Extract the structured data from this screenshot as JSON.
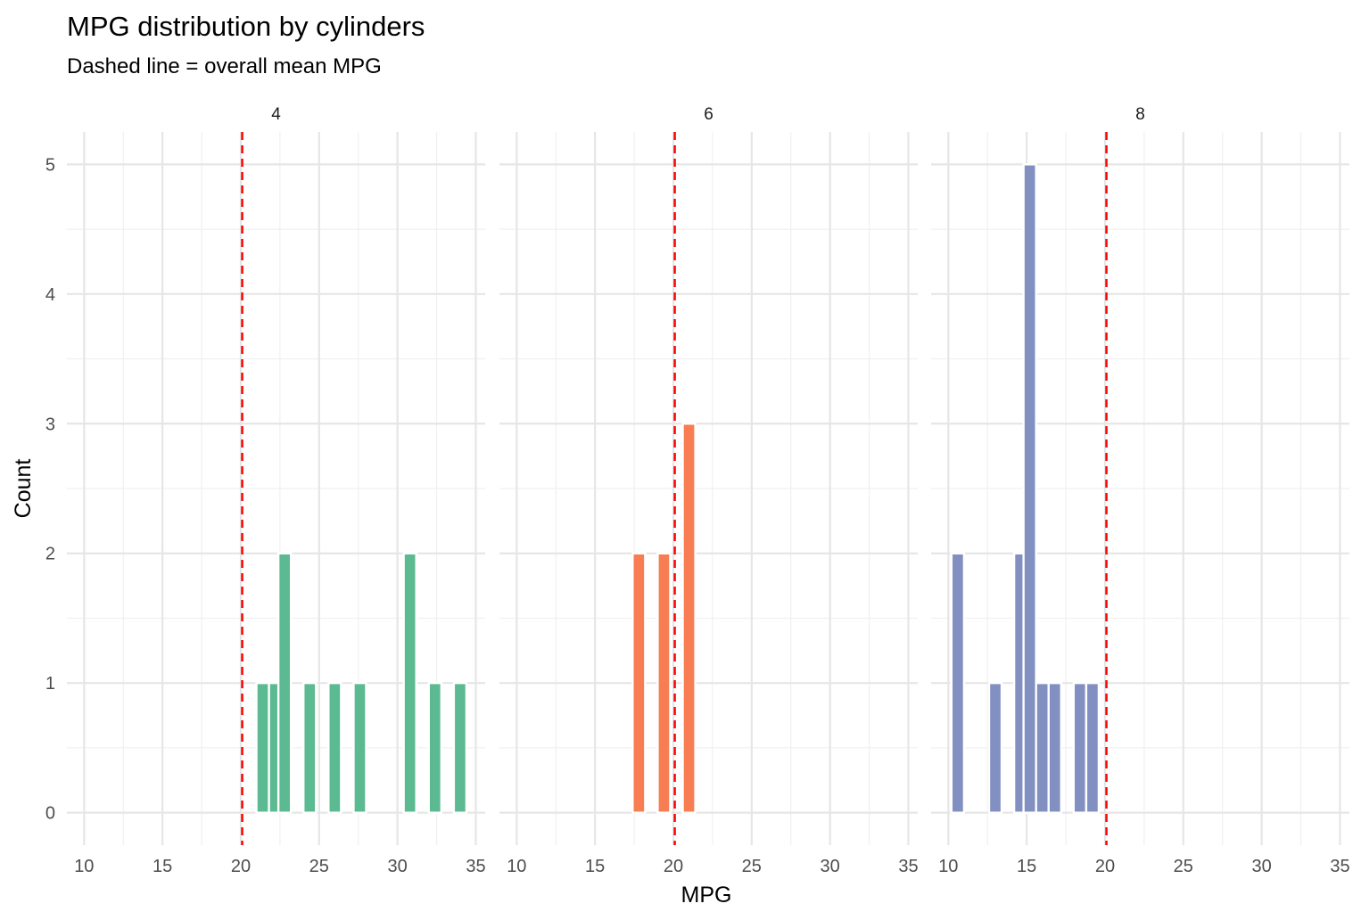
{
  "chart_data": {
    "type": "bar",
    "title": "MPG distribution by cylinders",
    "subtitle": "Dashed line = overall mean MPG",
    "xlabel": "MPG",
    "ylabel": "Count",
    "xlim": [
      8.9,
      35.6
    ],
    "ylim": [
      -0.25,
      5.25
    ],
    "x_ticks": [
      "10",
      "15",
      "20",
      "25",
      "30",
      "35"
    ],
    "y_ticks": [
      "0",
      "1",
      "2",
      "3",
      "4",
      "5"
    ],
    "mean_mpg": 20.09,
    "bin_width": 0.8,
    "grid": true,
    "panels": [
      {
        "label": "4",
        "color": "#5BBA91",
        "bars": [
          {
            "x": 21.4,
            "count": 1
          },
          {
            "x": 22.2,
            "count": 1
          },
          {
            "x": 22.8,
            "count": 2
          },
          {
            "x": 24.4,
            "count": 1
          },
          {
            "x": 26.0,
            "count": 1
          },
          {
            "x": 27.6,
            "count": 1
          },
          {
            "x": 30.8,
            "count": 2
          },
          {
            "x": 32.4,
            "count": 1
          },
          {
            "x": 34.0,
            "count": 1
          }
        ]
      },
      {
        "label": "6",
        "color": "#F97D52",
        "bars": [
          {
            "x": 17.8,
            "count": 2
          },
          {
            "x": 19.4,
            "count": 2
          },
          {
            "x": 21.0,
            "count": 3
          }
        ]
      },
      {
        "label": "8",
        "color": "#8190C0",
        "bars": [
          {
            "x": 10.6,
            "count": 2
          },
          {
            "x": 13.0,
            "count": 1
          },
          {
            "x": 14.6,
            "count": 2
          },
          {
            "x": 15.2,
            "count": 5
          },
          {
            "x": 16.0,
            "count": 1
          },
          {
            "x": 16.8,
            "count": 1
          },
          {
            "x": 18.4,
            "count": 1
          },
          {
            "x": 19.2,
            "count": 1
          }
        ]
      }
    ]
  }
}
